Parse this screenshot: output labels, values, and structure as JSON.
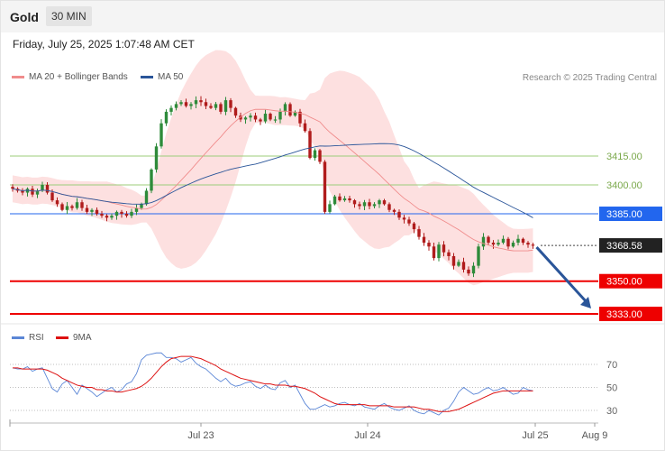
{
  "header": {
    "title": "Gold",
    "timeframe": "30 MIN"
  },
  "date_line": "Friday, July 25, 2025 1:07:48 AM CET",
  "legend": {
    "ma20": {
      "label": "MA 20 + Bollinger Bands",
      "color": "#f08c8c"
    },
    "ma50": {
      "label": "MA 50",
      "color": "#2a5599"
    },
    "rsi": {
      "label": "RSI",
      "color": "#5b86d6"
    },
    "ma9": {
      "label": "9MA",
      "color": "#dd1111"
    }
  },
  "credit": "Research © 2025 Trading Central",
  "colors": {
    "up": "#2e8b3a",
    "down": "#b01c1c",
    "band": "#fde0e0",
    "support": "#ee0000",
    "resistance_green": "#9ccc7a",
    "pivot_blue": "#2266ee",
    "arrow": "#2a5599"
  },
  "chart_data": {
    "type": "candlestick",
    "x_ticks": [
      "Jul 23",
      "Jul 24",
      "Jul 25",
      "Aug 9"
    ],
    "price_levels": [
      {
        "label": "3415.00",
        "value": 3415.0,
        "kind": "resistance"
      },
      {
        "label": "3400.00",
        "value": 3400.0,
        "kind": "resistance"
      },
      {
        "label": "3385.00",
        "value": 3385.0,
        "kind": "pivot"
      },
      {
        "label": "3368.58",
        "value": 3368.58,
        "kind": "last"
      },
      {
        "label": "3350.00",
        "value": 3350.0,
        "kind": "support"
      },
      {
        "label": "3333.00",
        "value": 3333.0,
        "kind": "support"
      }
    ],
    "projection": {
      "from": 3368.58,
      "to": 3333.0
    },
    "closes": [
      3398,
      3397,
      3396,
      3398,
      3395,
      3397,
      3400,
      3396,
      3392,
      3390,
      3387,
      3389,
      3388,
      3391,
      3388,
      3386,
      3387,
      3385,
      3384,
      3383,
      3384,
      3386,
      3385,
      3384,
      3386,
      3388,
      3390,
      3397,
      3408,
      3420,
      3432,
      3438,
      3440,
      3442,
      3443,
      3441,
      3442,
      3444,
      3443,
      3441,
      3440,
      3442,
      3438,
      3444,
      3440,
      3436,
      3434,
      3435,
      3436,
      3434,
      3433,
      3437,
      3434,
      3434,
      3438,
      3442,
      3436,
      3438,
      3432,
      3428,
      3414,
      3418,
      3412,
      3386,
      3390,
      3394,
      3392,
      3393,
      3392,
      3390,
      3389,
      3391,
      3389,
      3390,
      3392,
      3390,
      3387,
      3386,
      3383,
      3382,
      3380,
      3377,
      3373,
      3370,
      3368,
      3362,
      3369,
      3365,
      3363,
      3358,
      3360,
      3356,
      3354,
      3358,
      3368,
      3373,
      3370,
      3369,
      3370,
      3372,
      3368,
      3370,
      3372,
      3370,
      3369,
      3368.58
    ],
    "rsi": {
      "ylim": [
        20,
        80
      ],
      "ticks": [
        70,
        50,
        30
      ],
      "rsi": [
        67,
        66,
        66,
        68,
        64,
        66,
        67,
        58,
        49,
        46,
        53,
        56,
        50,
        44,
        52,
        49,
        46,
        42,
        45,
        48,
        50,
        46,
        48,
        53,
        55,
        62,
        74,
        78,
        79,
        80,
        80,
        76,
        76,
        75,
        72,
        74,
        76,
        71,
        68,
        66,
        62,
        58,
        55,
        58,
        53,
        51,
        52,
        54,
        55,
        51,
        49,
        52,
        49,
        48,
        54,
        56,
        50,
        52,
        44,
        36,
        31,
        31,
        33,
        35,
        33,
        34,
        36,
        37,
        35,
        34,
        36,
        33,
        32,
        31,
        34,
        36,
        33,
        31,
        30,
        32,
        34,
        30,
        28,
        27,
        30,
        28,
        26,
        30,
        32,
        38,
        46,
        50,
        47,
        44,
        45,
        48,
        50,
        47,
        48,
        50,
        47,
        44,
        45,
        50,
        48,
        47
      ],
      "ma9": [
        67,
        67,
        66,
        66,
        66,
        66,
        66,
        65,
        63,
        61,
        58,
        56,
        54,
        52,
        51,
        50,
        50,
        48,
        48,
        47,
        47,
        46,
        46,
        47,
        48,
        49,
        51,
        54,
        58,
        63,
        68,
        72,
        75,
        76,
        77,
        77,
        77,
        76,
        75,
        73,
        71,
        69,
        66,
        64,
        62,
        60,
        58,
        57,
        56,
        55,
        54,
        53,
        53,
        52,
        52,
        52,
        51,
        51,
        50,
        49,
        47,
        45,
        42,
        40,
        38,
        36,
        35,
        35,
        35,
        35,
        35,
        35,
        34,
        34,
        34,
        34,
        34,
        33,
        33,
        33,
        33,
        33,
        32,
        31,
        31,
        30,
        29,
        29,
        29,
        30,
        31,
        33,
        35,
        37,
        39,
        41,
        43,
        45,
        46,
        47,
        47,
        47,
        47,
        47,
        47,
        47
      ]
    }
  }
}
